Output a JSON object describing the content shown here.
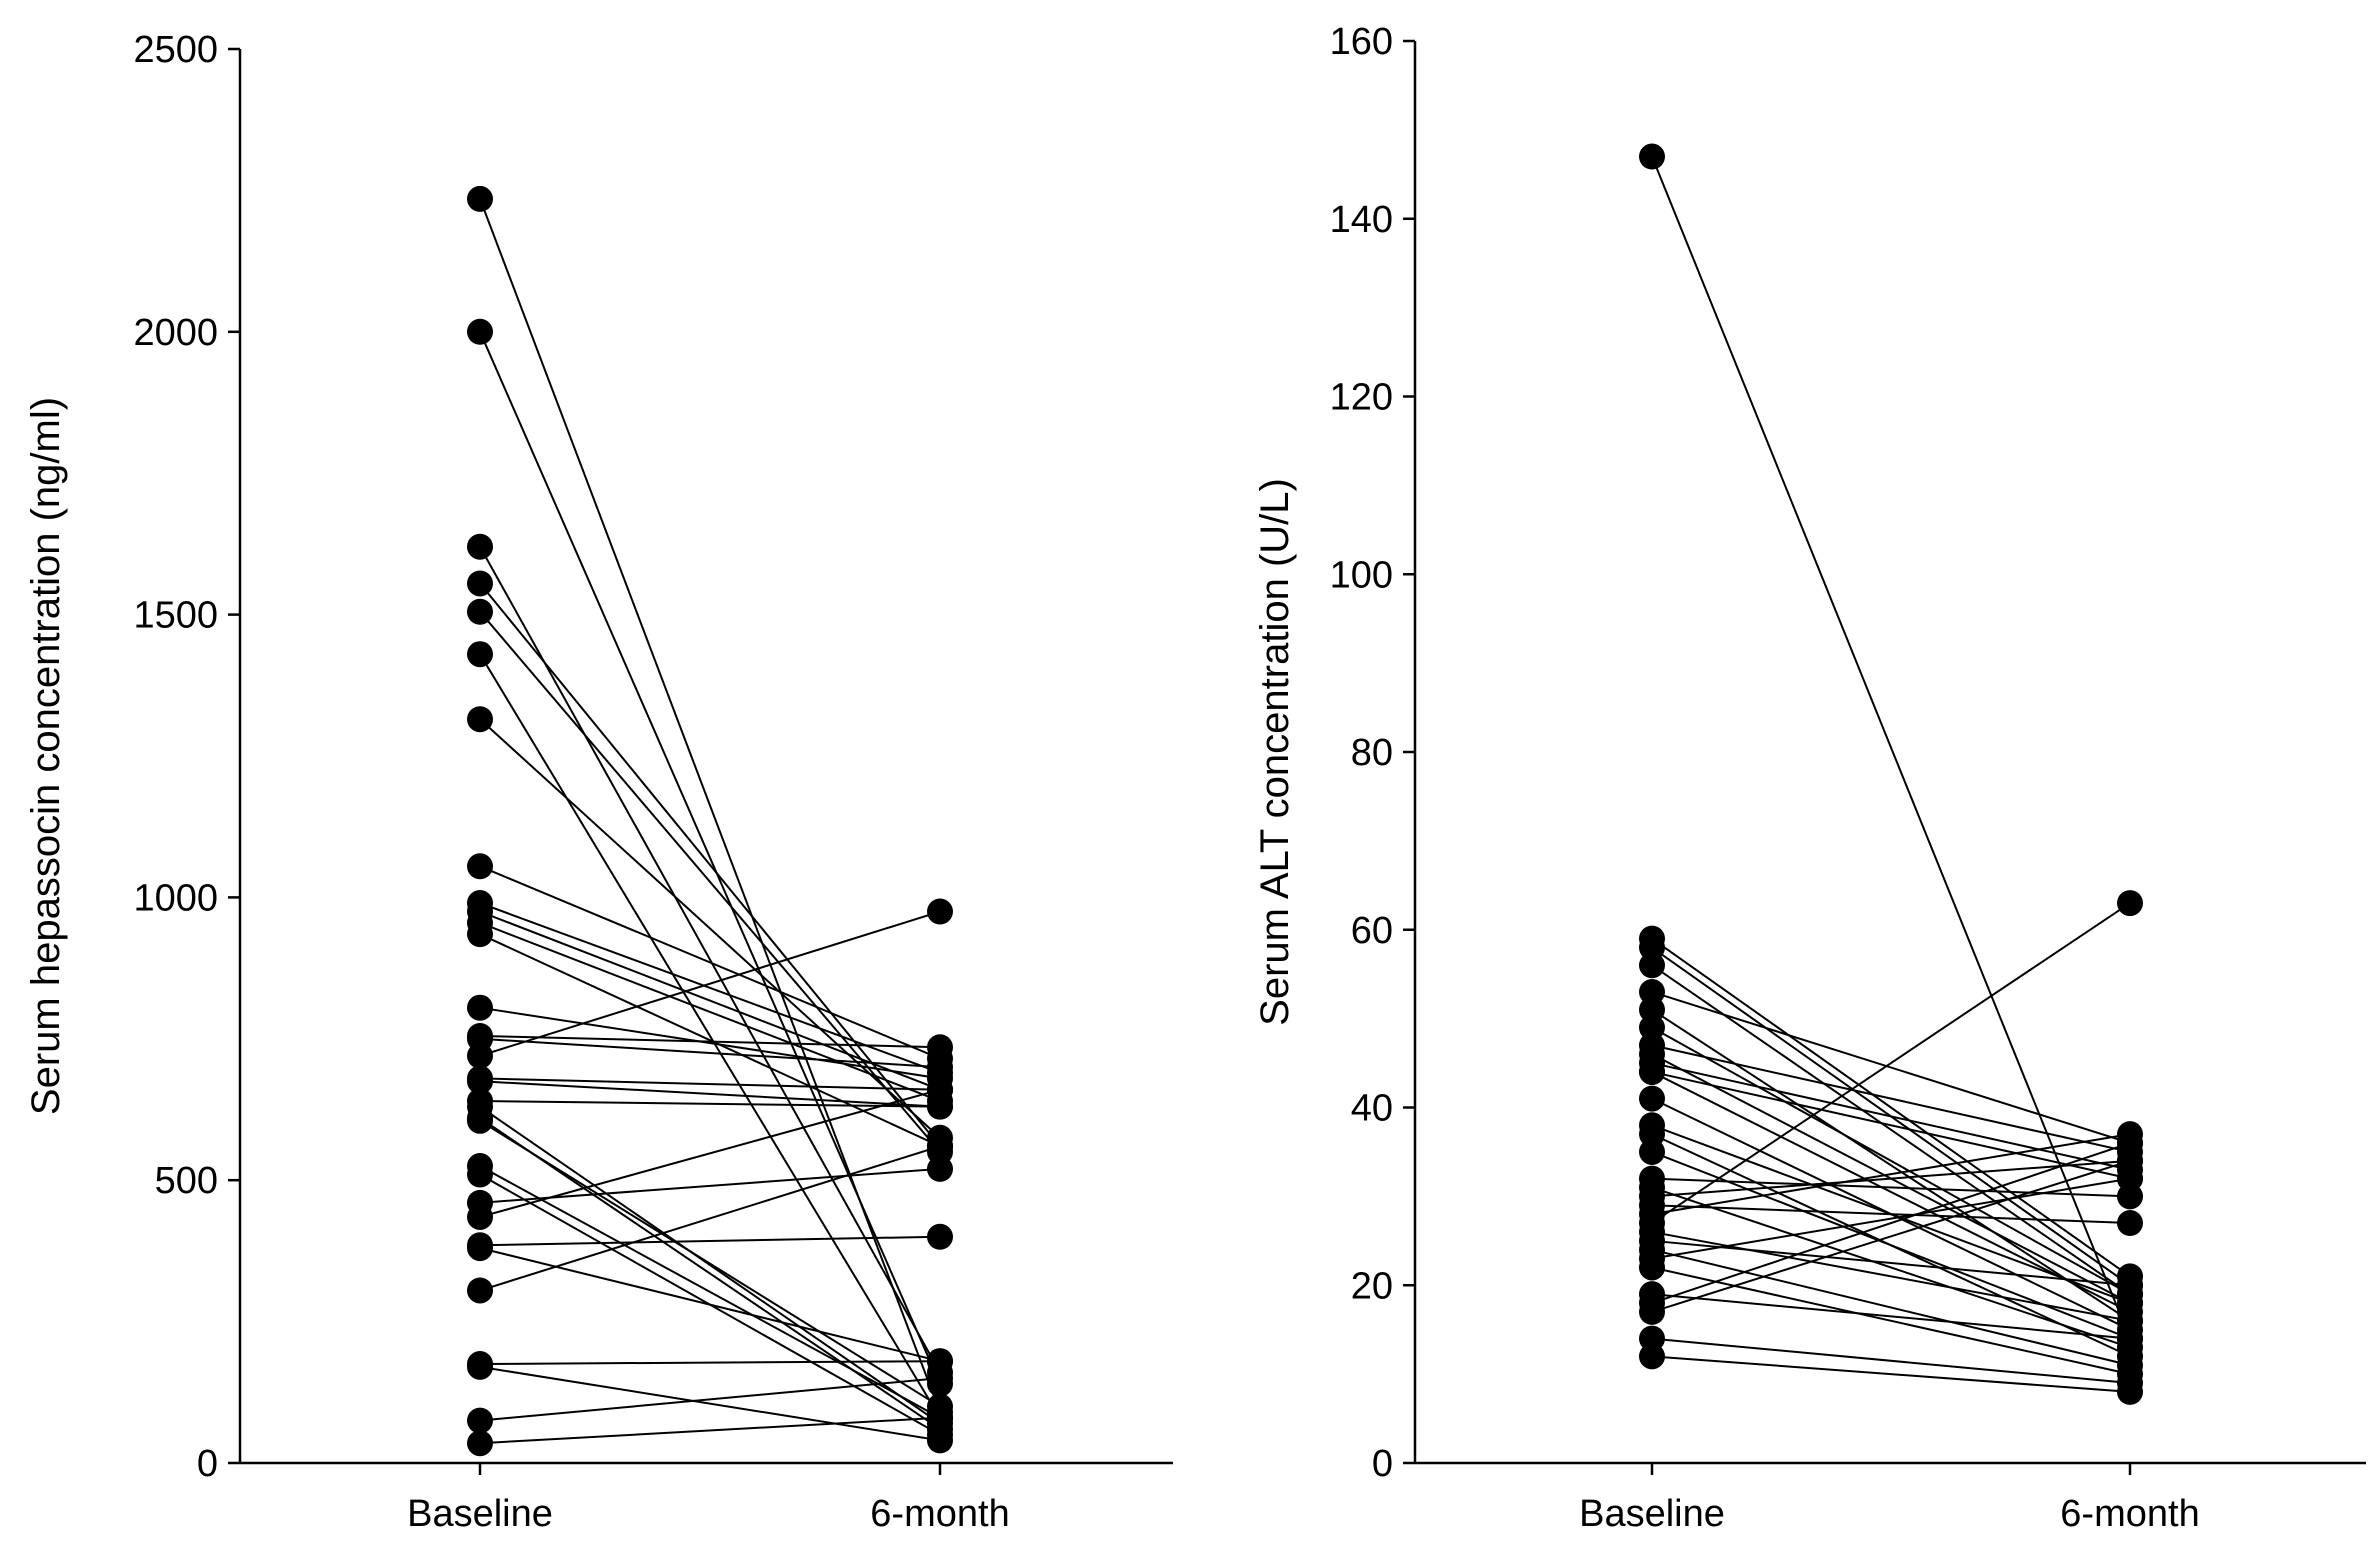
{
  "chart_data": [
    {
      "type": "line",
      "subtype": "paired-slope",
      "title": "",
      "xlabel": "",
      "ylabel": "Serum hepassocin concentration (ng/ml)",
      "categories": [
        "Baseline",
        "6-month"
      ],
      "ylim": [
        0,
        2500
      ],
      "yticks": [
        0,
        500,
        1000,
        1500,
        2000,
        2500
      ],
      "yticklabels": [
        "0",
        "500",
        "1000",
        "1500",
        "2000",
        "2500"
      ],
      "grid": false,
      "pairs": [
        [
          2235,
          90
        ],
        [
          2000,
          140
        ],
        [
          1620,
          160
        ],
        [
          1555,
          560
        ],
        [
          1505,
          550
        ],
        [
          1430,
          80
        ],
        [
          1315,
          575
        ],
        [
          1055,
          715
        ],
        [
          990,
          690
        ],
        [
          975,
          660
        ],
        [
          955,
          640
        ],
        [
          935,
          560
        ],
        [
          805,
          680
        ],
        [
          755,
          735
        ],
        [
          750,
          700
        ],
        [
          720,
          975
        ],
        [
          680,
          660
        ],
        [
          675,
          630
        ],
        [
          640,
          630
        ],
        [
          630,
          70
        ],
        [
          610,
          60
        ],
        [
          605,
          100
        ],
        [
          525,
          80
        ],
        [
          510,
          50
        ],
        [
          460,
          520
        ],
        [
          435,
          660
        ],
        [
          385,
          400
        ],
        [
          380,
          180
        ],
        [
          305,
          560
        ],
        [
          175,
          180
        ],
        [
          170,
          40
        ],
        [
          75,
          150
        ],
        [
          35,
          80
        ]
      ]
    },
    {
      "type": "line",
      "subtype": "paired-slope",
      "title": "",
      "xlabel": "",
      "ylabel": "Serum ALT concentration (U/L)",
      "categories": [
        "Baseline",
        "6-month"
      ],
      "ylim": [
        0,
        160
      ],
      "yticks": [
        0,
        20,
        40,
        60,
        80,
        100,
        120,
        140,
        160
      ],
      "yticklabels": [
        "0",
        "20",
        "40",
        "60",
        "80",
        "100",
        "120",
        "140",
        "160"
      ],
      "grid": false,
      "pairs": [
        [
          147,
          14
        ],
        [
          59,
          21
        ],
        [
          58,
          20
        ],
        [
          56,
          19
        ],
        [
          53,
          36
        ],
        [
          51,
          16
        ],
        [
          49,
          19
        ],
        [
          47,
          35
        ],
        [
          46,
          18
        ],
        [
          45,
          33
        ],
        [
          44,
          17
        ],
        [
          44,
          32
        ],
        [
          41,
          15
        ],
        [
          38,
          18
        ],
        [
          37,
          12
        ],
        [
          35,
          14
        ],
        [
          32,
          30
        ],
        [
          31,
          13
        ],
        [
          30,
          34
        ],
        [
          29,
          27
        ],
        [
          28,
          37
        ],
        [
          27,
          63
        ],
        [
          26,
          16
        ],
        [
          25,
          20
        ],
        [
          24,
          11
        ],
        [
          23,
          32
        ],
        [
          22,
          10
        ],
        [
          19,
          14
        ],
        [
          18,
          36
        ],
        [
          17,
          34
        ],
        [
          14,
          9
        ],
        [
          12,
          8
        ]
      ]
    }
  ]
}
